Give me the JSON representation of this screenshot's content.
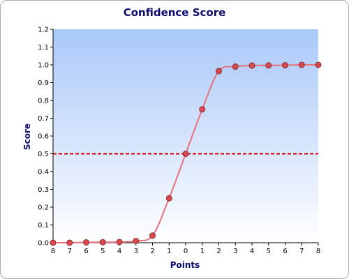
{
  "chart_data": {
    "type": "line",
    "title": "Confidence Score",
    "xlabel": "Points",
    "ylabel": "Score",
    "x_tick_labels": [
      "8",
      "7",
      "6",
      "5",
      "4",
      "3",
      "2",
      "1",
      "0",
      "1",
      "2",
      "3",
      "4",
      "5",
      "6",
      "7",
      "8"
    ],
    "ylim": [
      0,
      1.2
    ],
    "y_ticks": [
      "0.0",
      "0.1",
      "0.2",
      "0.3",
      "0.4",
      "0.5",
      "0.6",
      "0.7",
      "0.8",
      "0.9",
      "1.0",
      "1.1",
      "1.2"
    ],
    "series": [
      {
        "values": [
          0.0,
          0.0,
          0.002,
          0.003,
          0.004,
          0.01,
          0.04,
          0.25,
          0.5,
          0.75,
          0.965,
          0.99,
          0.996,
          0.997,
          0.998,
          1.0,
          1.0
        ],
        "line_color": "#e8707a",
        "marker_color": "#d94a52",
        "marker_stroke": "#8a2a30"
      }
    ],
    "threshold": {
      "value": 0.5,
      "color": "#cc0000",
      "style": "dashed"
    },
    "background_gradient": [
      "#a9c8f8",
      "#ffffff"
    ],
    "grid": false,
    "legend": "none"
  }
}
